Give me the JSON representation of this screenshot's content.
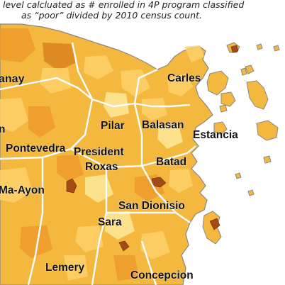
{
  "caption": {
    "line1": "level calcluated as # enrolled in 4P program classified",
    "line2": "as “poor” divided by 2010 census count."
  },
  "colors": {
    "sea": "#ffffff",
    "land_base": "#f5b83e",
    "land_light": "#fbd06a",
    "land_pale": "#fde99a",
    "land_dark": "#ec9a2a",
    "land_darker": "#d9821f",
    "high": "#a44a14",
    "boundary_major": "#ffffff",
    "coastline": "#888888"
  },
  "places": [
    {
      "id": "ajuy",
      "label": "anay"
    },
    {
      "id": "carles",
      "label": "Carles"
    },
    {
      "id": "pilar",
      "label": "Pilar"
    },
    {
      "id": "balasan",
      "label": "Balasan"
    },
    {
      "id": "estancia",
      "label": "Estancia"
    },
    {
      "id": "n-fragment",
      "label": "n"
    },
    {
      "id": "pontevedra",
      "label": "Pontevedra"
    },
    {
      "id": "president",
      "label": "President"
    },
    {
      "id": "roxas",
      "label": "Roxas"
    },
    {
      "id": "batad",
      "label": "Batad"
    },
    {
      "id": "ma-ayon",
      "label": "Ma-Ayon"
    },
    {
      "id": "san-dionisio",
      "label": "San Dionisio"
    },
    {
      "id": "sara",
      "label": "Sara"
    },
    {
      "id": "lemery",
      "label": "Lemery"
    },
    {
      "id": "concepcion",
      "label": "Concepcion"
    }
  ]
}
